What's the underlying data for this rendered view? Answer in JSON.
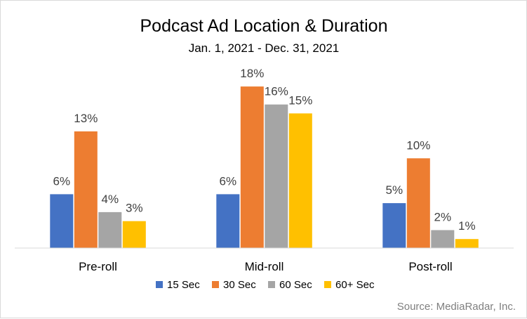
{
  "chart_data": {
    "type": "bar",
    "title": "Podcast Ad Location & Duration",
    "subtitle": "Jan. 1, 2021 - Dec. 31, 2021",
    "categories": [
      "Pre-roll",
      "Mid-roll",
      "Post-roll"
    ],
    "series": [
      {
        "name": "15 Sec",
        "color": "#4472C4",
        "values": [
          6,
          6,
          5
        ],
        "labels": [
          "6%",
          "6%",
          "5%"
        ]
      },
      {
        "name": "30 Sec",
        "color": "#ED7D31",
        "values": [
          13,
          18,
          10
        ],
        "labels": [
          "13%",
          "18%",
          "10%"
        ]
      },
      {
        "name": "60 Sec",
        "color": "#A5A5A5",
        "values": [
          4,
          16,
          2
        ],
        "labels": [
          "4%",
          "16%",
          "2%"
        ]
      },
      {
        "name": "60+ Sec",
        "color": "#FFC000",
        "values": [
          3,
          15,
          1
        ],
        "labels": [
          "3%",
          "15%",
          "1%"
        ]
      }
    ],
    "xlabel": "",
    "ylabel": "",
    "ylim": [
      0,
      20
    ],
    "grid": false,
    "legend_position": "bottom",
    "source": "Source: MediaRadar, Inc."
  }
}
